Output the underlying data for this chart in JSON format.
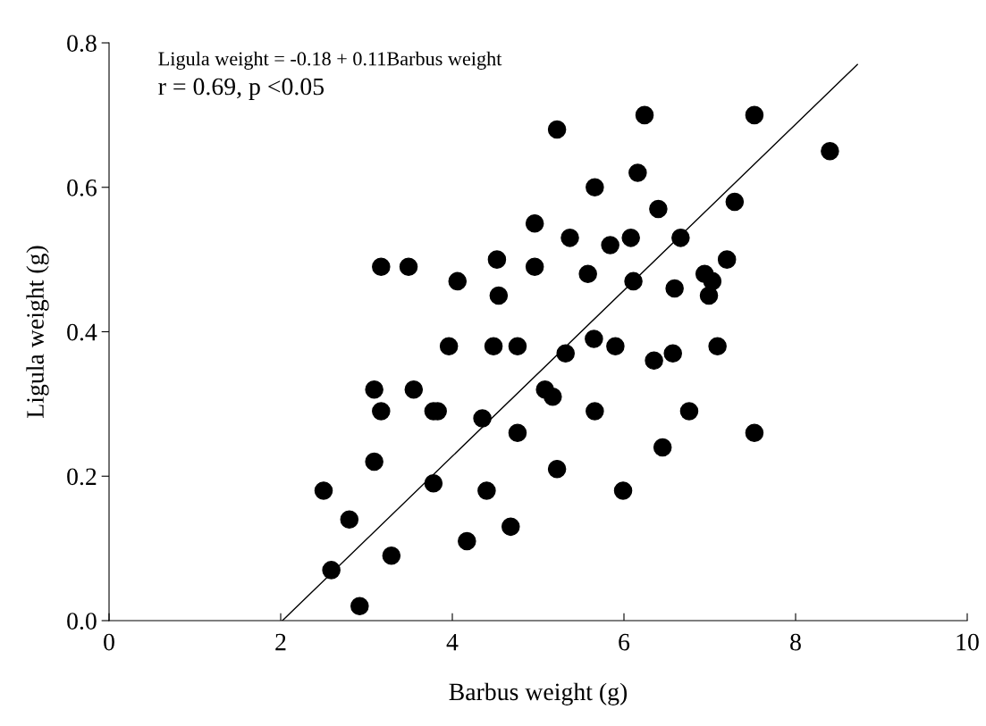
{
  "chart_data": {
    "type": "scatter",
    "xlabel": "Barbus weight (g)",
    "ylabel": "Ligula weight (g)",
    "xlim": [
      0,
      10
    ],
    "xticks": [
      0,
      2,
      4,
      6,
      8,
      10
    ],
    "ylim": [
      0,
      0.8
    ],
    "yticks": [
      {
        "value": 0,
        "label": "0.0"
      },
      0.2,
      0.4,
      0.6,
      0.8
    ],
    "grid": false,
    "annotations": [
      "Ligula weight = -0.18 + 0.11Barbus weight",
      "r = 0.69, p <0.05"
    ],
    "series": [
      {
        "marker": "circle",
        "color": "#000000",
        "x": [
          2.5,
          2.59,
          2.8,
          2.92,
          3.09,
          3.29,
          3.09,
          3.17,
          3.17,
          3.49,
          3.55,
          3.78,
          3.83,
          3.78,
          3.96,
          4.06,
          4.17,
          4.35,
          4.4,
          4.48,
          4.52,
          4.54,
          4.68,
          4.76,
          4.76,
          4.96,
          4.96,
          5.08,
          5.17,
          5.22,
          5.22,
          5.32,
          5.37,
          5.58,
          5.66,
          5.65,
          5.66,
          5.84,
          5.9,
          5.99,
          6.08,
          6.11,
          6.16,
          6.24,
          6.4,
          6.35,
          6.45,
          6.57,
          6.59,
          6.66,
          6.76,
          6.94,
          7.03,
          6.99,
          7.09,
          7.2,
          7.29,
          7.52,
          7.52,
          8.4
        ],
        "values": [
          0.18,
          0.07,
          0.14,
          0.02,
          0.22,
          0.09,
          0.32,
          0.29,
          0.49,
          0.49,
          0.32,
          0.29,
          0.29,
          0.19,
          0.38,
          0.47,
          0.11,
          0.28,
          0.18,
          0.38,
          0.5,
          0.45,
          0.13,
          0.26,
          0.38,
          0.55,
          0.49,
          0.32,
          0.31,
          0.21,
          0.68,
          0.37,
          0.53,
          0.48,
          0.6,
          0.39,
          0.29,
          0.52,
          0.38,
          0.18,
          0.53,
          0.47,
          0.62,
          0.7,
          0.57,
          0.36,
          0.24,
          0.37,
          0.46,
          0.53,
          0.29,
          0.48,
          0.47,
          0.45,
          0.38,
          0.5,
          0.58,
          0.7,
          0.26,
          0.65
        ]
      },
      {
        "type": "line",
        "marker": "none",
        "color": "#000000",
        "x": [
          2.02,
          8.72
        ],
        "values": [
          0,
          0.77
        ]
      }
    ]
  }
}
